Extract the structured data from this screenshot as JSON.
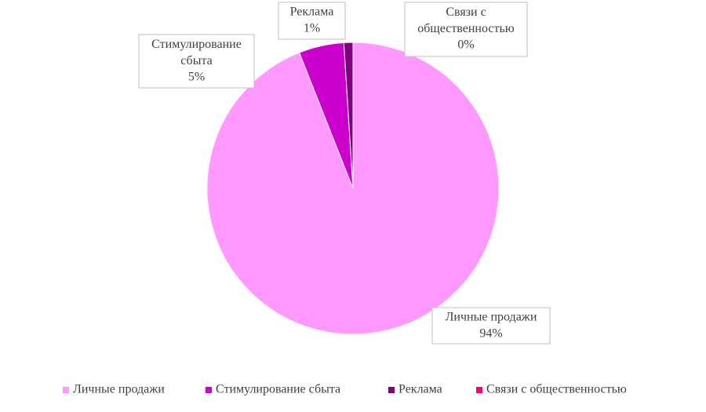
{
  "chart_data": {
    "type": "pie",
    "categories": [
      "Личные продажи",
      "Стимулирование сбыта",
      "Реклама",
      "Связи с общественностью"
    ],
    "values": [
      94,
      5,
      1,
      0
    ],
    "value_labels": [
      "94%",
      "5%",
      "1%",
      "0%"
    ],
    "colors": [
      "#ff99ff",
      "#cc00cc",
      "#800080",
      "#ff0066"
    ],
    "legend": "bottom"
  }
}
